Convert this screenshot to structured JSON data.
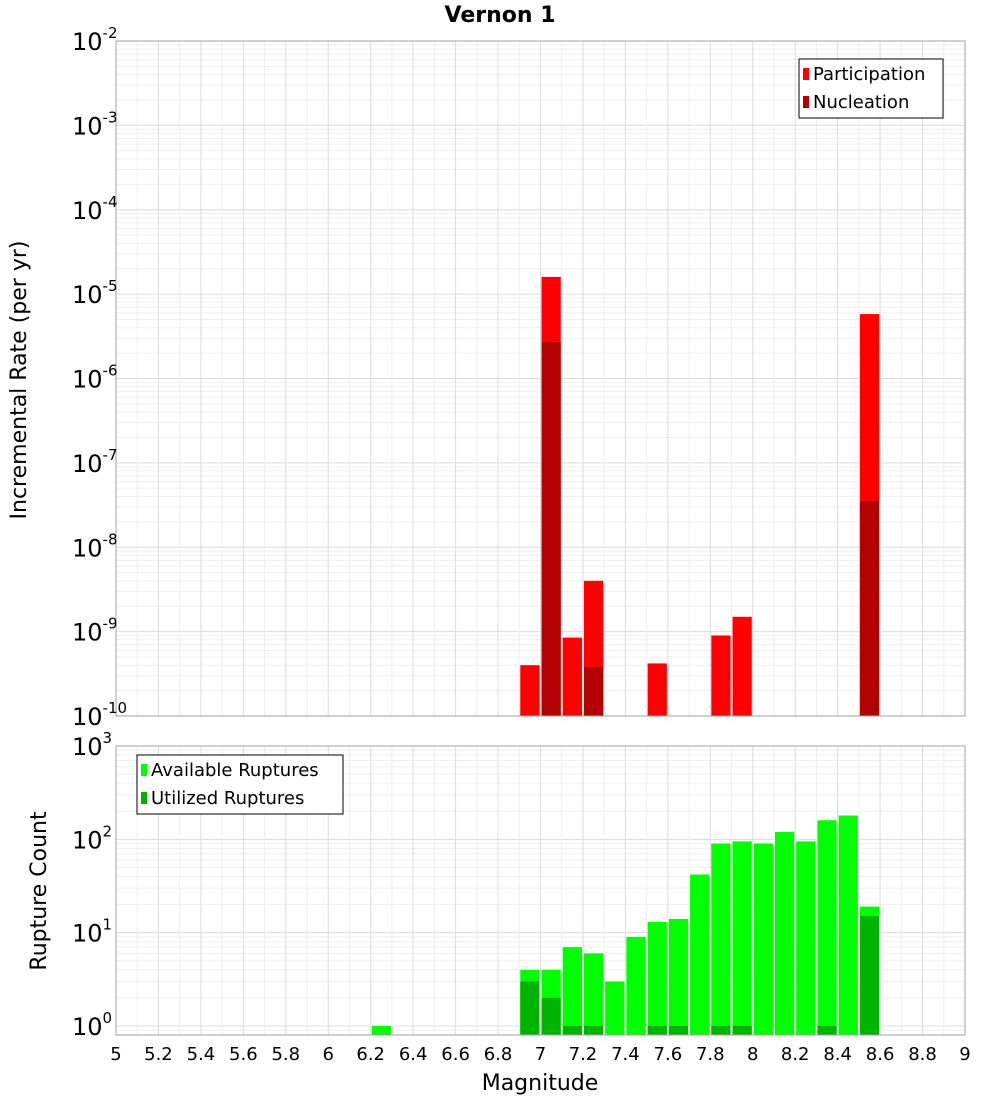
{
  "chart_data": {
    "title": "Vernon 1",
    "xlabel": "Magnitude",
    "xlim": [
      5,
      9
    ],
    "x_ticks": [
      "5",
      "5.2",
      "5.4",
      "5.6",
      "5.8",
      "6",
      "6.2",
      "6.4",
      "6.6",
      "6.8",
      "7",
      "7.2",
      "7.4",
      "7.6",
      "7.8",
      "8",
      "8.2",
      "8.4",
      "8.6",
      "8.8",
      "9"
    ],
    "bin_width": 0.1,
    "panels": [
      {
        "type": "bar",
        "ylabel": "Incremental Rate (per yr)",
        "yscale": "log",
        "ylim": [
          1e-10,
          0.01
        ],
        "y_ticks": [
          {
            "base": "10",
            "exp": "-2"
          },
          {
            "base": "10",
            "exp": "-3"
          },
          {
            "base": "10",
            "exp": "-4"
          },
          {
            "base": "10",
            "exp": "-5"
          },
          {
            "base": "10",
            "exp": "-6"
          },
          {
            "base": "10",
            "exp": "-7"
          },
          {
            "base": "10",
            "exp": "-8"
          },
          {
            "base": "10",
            "exp": "-9"
          },
          {
            "base": "10",
            "exp": "-10"
          }
        ],
        "legend_position": "top-right",
        "series": [
          {
            "name": "Participation",
            "color": "#ff0000",
            "x": [
              6.95,
              7.05,
              7.15,
              7.25,
              7.55,
              7.85,
              7.95,
              8.55
            ],
            "values": [
              4e-10,
              1.6e-05,
              8.5e-10,
              4e-09,
              4.2e-10,
              9e-10,
              1.5e-09,
              5.8e-06
            ]
          },
          {
            "name": "Nucleation",
            "color": "#b30000",
            "x": [
              7.05,
              7.25,
              8.55
            ],
            "values": [
              2.7e-06,
              3.8e-10,
              3.5e-08
            ]
          }
        ]
      },
      {
        "type": "bar",
        "ylabel": "Rupture Count",
        "yscale": "log",
        "ylim": [
          0.8,
          1000
        ],
        "y_ticks": [
          {
            "base": "10",
            "exp": "3"
          },
          {
            "base": "10",
            "exp": "2"
          },
          {
            "base": "10",
            "exp": "1"
          },
          {
            "base": "10",
            "exp": "0"
          }
        ],
        "legend_position": "top-left",
        "series": [
          {
            "name": "Available Ruptures",
            "color": "#00ff00",
            "x": [
              6.25,
              6.95,
              7.05,
              7.15,
              7.25,
              7.35,
              7.45,
              7.55,
              7.65,
              7.75,
              7.85,
              7.95,
              8.05,
              8.15,
              8.25,
              8.35,
              8.45,
              8.55
            ],
            "values": [
              1,
              4,
              4,
              7,
              6,
              3,
              9,
              13,
              14,
              42,
              90,
              95,
              90,
              120,
              95,
              160,
              180,
              19
            ]
          },
          {
            "name": "Utilized Ruptures",
            "color": "#00b300",
            "x": [
              6.95,
              7.05,
              7.15,
              7.25,
              7.55,
              7.65,
              7.85,
              7.95,
              8.35,
              8.55
            ],
            "values": [
              3,
              2,
              1,
              1,
              1,
              1,
              1,
              1,
              1,
              15
            ]
          }
        ]
      }
    ]
  }
}
